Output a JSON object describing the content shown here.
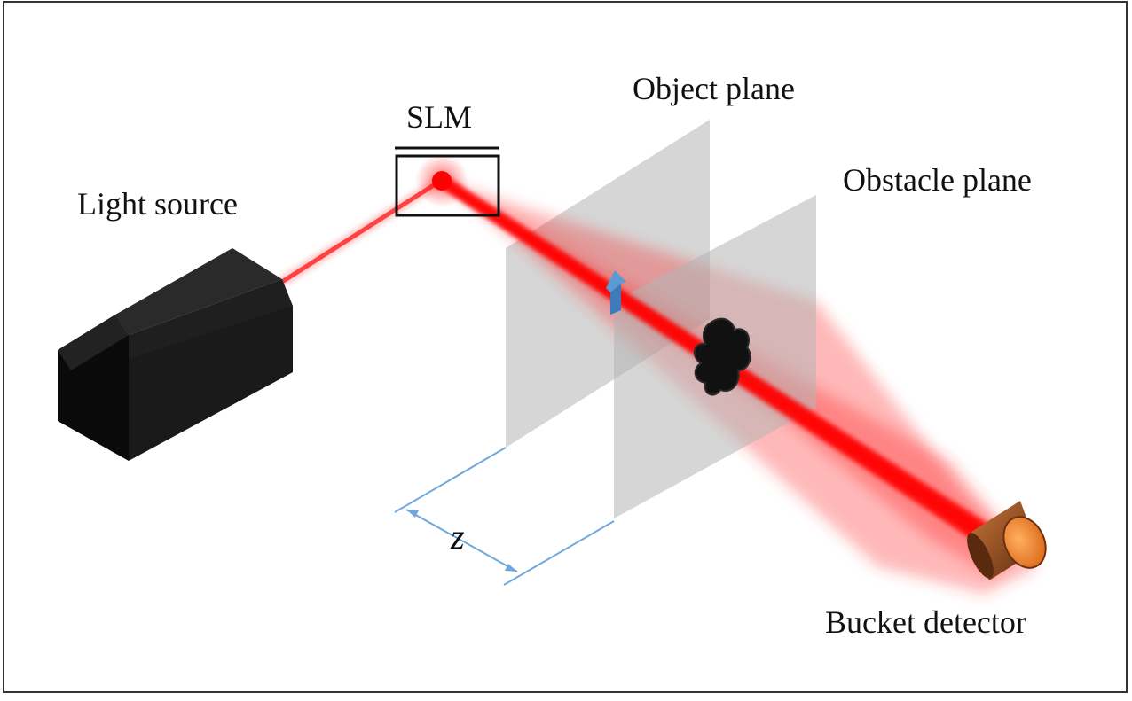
{
  "labels": {
    "light_source": "Light source",
    "slm": "SLM",
    "object_plane": "Object plane",
    "obstacle_plane": "Obstacle plane",
    "bucket_detector": "Bucket detector",
    "distance": "z"
  },
  "colors": {
    "beam": "#ff0000",
    "plane": "#b4b4b4",
    "dimension_line": "#6fa8dc",
    "detector_body": "#8b4513",
    "detector_face": "#f4a460",
    "source_body": "#111111",
    "arrow": "#5b9bd5"
  },
  "icons": {
    "object": "up-arrow-icon",
    "obstacle": "blob-shape"
  }
}
